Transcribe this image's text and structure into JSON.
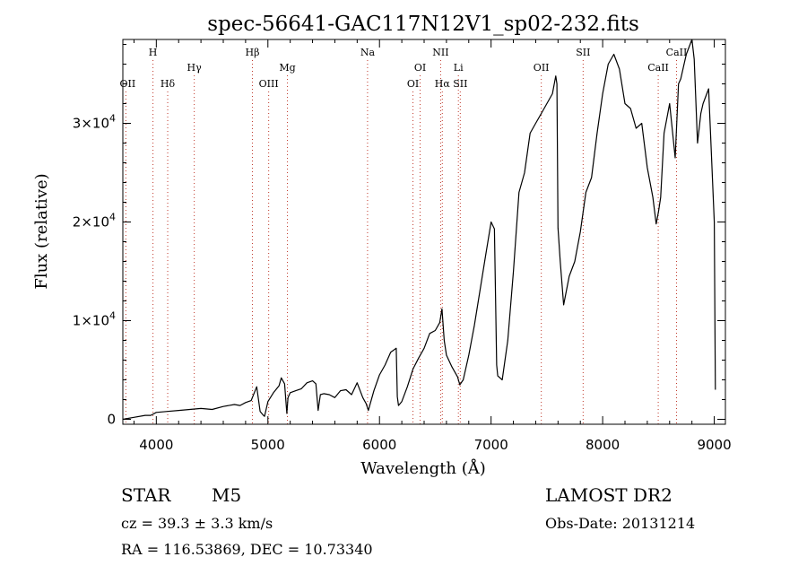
{
  "chart_data": {
    "type": "line",
    "title": "spec-56641-GAC117N12V1_sp02-232.fits",
    "xlabel": "Wavelength (Å)",
    "ylabel": "Flux (relative)",
    "xlim": [
      3700,
      9100
    ],
    "ylim": [
      -500,
      38500
    ],
    "xticks": [
      {
        "value": 4000,
        "label": "4000"
      },
      {
        "value": 5000,
        "label": "5000"
      },
      {
        "value": 6000,
        "label": "6000"
      },
      {
        "value": 7000,
        "label": "7000"
      },
      {
        "value": 8000,
        "label": "8000"
      },
      {
        "value": 9000,
        "label": "9000"
      }
    ],
    "yticks": [
      {
        "value": 0,
        "mant": "0",
        "exp": ""
      },
      {
        "value": 10000,
        "mant": "1×10",
        "exp": "4"
      },
      {
        "value": 20000,
        "mant": "2×10",
        "exp": "4"
      },
      {
        "value": 30000,
        "mant": "3×10",
        "exp": "4"
      }
    ],
    "line_colors": {
      "spectrum": "#000000",
      "marker": "#c0392b"
    },
    "lines": [
      {
        "wavelength": 3727,
        "label": "OII",
        "row": 3
      },
      {
        "wavelength": 3970,
        "label": "H",
        "row": 1
      },
      {
        "wavelength": 4102,
        "label": "Hδ",
        "row": 3
      },
      {
        "wavelength": 4340,
        "label": "Hγ",
        "row": 2
      },
      {
        "wavelength": 4861,
        "label": "Hβ",
        "row": 1
      },
      {
        "wavelength": 5007,
        "label": "OIII",
        "row": 3
      },
      {
        "wavelength": 5175,
        "label": "Mg",
        "row": 2
      },
      {
        "wavelength": 5893,
        "label": "Na",
        "row": 1
      },
      {
        "wavelength": 6300,
        "label": "OI",
        "row": 3
      },
      {
        "wavelength": 6364,
        "label": "OI",
        "row": 2
      },
      {
        "wavelength": 6548,
        "label": "NII",
        "row": 1
      },
      {
        "wavelength": 6563,
        "label": "Hα",
        "row": 3
      },
      {
        "wavelength": 6707,
        "label": "Li",
        "row": 2
      },
      {
        "wavelength": 6724,
        "label": "SII",
        "row": 3
      },
      {
        "wavelength": 7450,
        "label": "OII",
        "row": 2
      },
      {
        "wavelength": 7825,
        "label": "SII",
        "row": 1
      },
      {
        "wavelength": 8498,
        "label": "CaII",
        "row": 2
      },
      {
        "wavelength": 8662,
        "label": "CaII",
        "row": 1
      }
    ],
    "series": [
      {
        "x": [
          3700,
          3800,
          3900,
          3950,
          4000,
          4100,
          4200,
          4300,
          4400,
          4500,
          4600,
          4700,
          4750,
          4800,
          4850,
          4900,
          4930,
          4960,
          4970,
          5000,
          5050,
          5100,
          5120,
          5150,
          5170,
          5180,
          5200,
          5250,
          5300,
          5350,
          5400,
          5430,
          5450,
          5470,
          5500,
          5550,
          5600,
          5650,
          5700,
          5750,
          5800,
          5850,
          5880,
          5900,
          5950,
          6000,
          6050,
          6100,
          6150,
          6160,
          6170,
          6200,
          6250,
          6300,
          6350,
          6400,
          6450,
          6500,
          6540,
          6560,
          6580,
          6600,
          6650,
          6700,
          6720,
          6750,
          6800,
          6850,
          6900,
          6950,
          7000,
          7030,
          7050,
          7060,
          7100,
          7150,
          7200,
          7250,
          7300,
          7350,
          7400,
          7450,
          7500,
          7550,
          7580,
          7590,
          7600,
          7620,
          7650,
          7700,
          7750,
          7800,
          7850,
          7900,
          7950,
          8000,
          8050,
          8100,
          8150,
          8200,
          8250,
          8300,
          8350,
          8400,
          8450,
          8480,
          8500,
          8520,
          8550,
          8600,
          8650,
          8680,
          8700,
          8750,
          8800,
          8820,
          8850,
          8880,
          8900,
          8950,
          9000,
          9010
        ],
        "y": [
          0,
          200,
          400,
          400,
          700,
          800,
          900,
          1000,
          1100,
          1000,
          1300,
          1500,
          1400,
          1700,
          1900,
          3300,
          800,
          400,
          300,
          1800,
          2700,
          3400,
          4200,
          3600,
          600,
          2200,
          2700,
          2900,
          3100,
          3700,
          3900,
          3600,
          900,
          2500,
          2600,
          2500,
          2200,
          2900,
          3000,
          2500,
          3700,
          2200,
          1600,
          900,
          2900,
          4500,
          5500,
          6800,
          7200,
          2300,
          1400,
          1800,
          3300,
          5100,
          6200,
          7200,
          8700,
          9000,
          9800,
          11200,
          8000,
          6500,
          5300,
          4300,
          3500,
          4000,
          6500,
          9500,
          13000,
          16500,
          20000,
          19300,
          5500,
          4400,
          4000,
          8000,
          15000,
          23000,
          25000,
          29000,
          30000,
          31000,
          32000,
          33000,
          34800,
          34000,
          19400,
          16000,
          11600,
          14500,
          16000,
          19000,
          23000,
          24500,
          29000,
          33000,
          36000,
          37000,
          35500,
          32000,
          31500,
          29500,
          30000,
          25500,
          22500,
          19800,
          21000,
          22500,
          29000,
          32000,
          26500,
          34000,
          34500,
          37000,
          38500,
          36500,
          28000,
          31000,
          32000,
          33500,
          20000,
          3000
        ]
      }
    ]
  },
  "info": {
    "object_type": "STAR",
    "subclass": "M5",
    "survey": "LAMOST DR2",
    "cz": "cz = 39.3 ± 3.3 km/s",
    "obs_date": "Obs-Date: 20131214",
    "coords": "RA = 116.53869, DEC =  10.73340"
  }
}
